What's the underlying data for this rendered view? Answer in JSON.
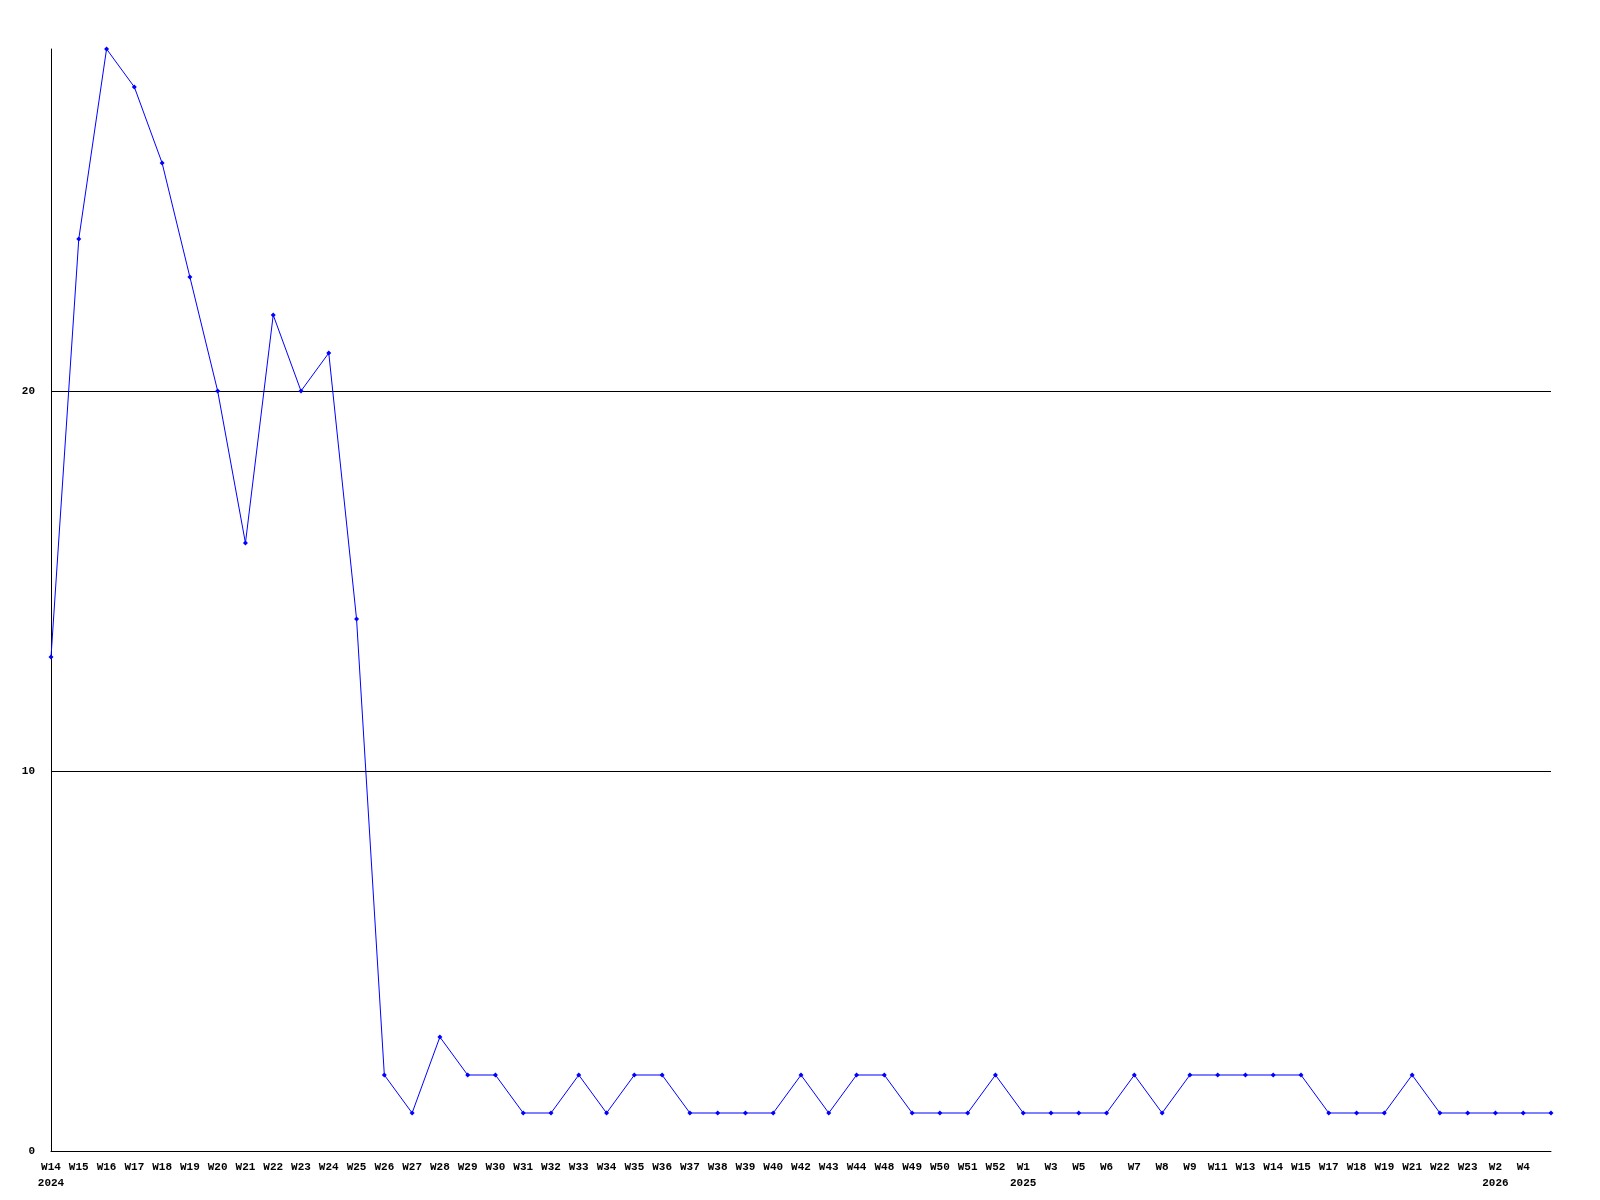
{
  "chart_data": {
    "type": "line",
    "categories": [
      "W14\n2024",
      "W15",
      "W16",
      "W17",
      "W18",
      "W19",
      "W20",
      "W21",
      "W22",
      "W23",
      "W24",
      "W25",
      "W26",
      "W27",
      "W28",
      "W29",
      "W30",
      "W31",
      "W32",
      "W33",
      "W34",
      "W35",
      "W36",
      "W37",
      "W38",
      "W39",
      "W40",
      "W42",
      "W43",
      "W44",
      "W48",
      "W49",
      "W50",
      "W51",
      "W52",
      "W1\n2025",
      "W3",
      "W5",
      "W6",
      "W7",
      "W8",
      "W9",
      "W11",
      "W13",
      "W14",
      "W15",
      "W17",
      "W18",
      "W19",
      "W21",
      "W22",
      "W23",
      "W2\n2026",
      "W4",
      null
    ],
    "series": [
      {
        "color": "#0000ff",
        "values": [
          13,
          24,
          29,
          28,
          26,
          23,
          20,
          16,
          22,
          20,
          21,
          14,
          2,
          1,
          3,
          2,
          2,
          1,
          1,
          2,
          1,
          2,
          2,
          1,
          1,
          1,
          1,
          2,
          1,
          2,
          2,
          1,
          1,
          1,
          2,
          1,
          1,
          1,
          1,
          2,
          1,
          2,
          2,
          2,
          2,
          2,
          1,
          1,
          1,
          2,
          1,
          1,
          1,
          1,
          1
        ]
      }
    ],
    "ylim": [
      0,
      29
    ],
    "yticks": [
      0,
      10,
      20
    ],
    "grid": "y",
    "marker": "diamond",
    "line_style": "solid"
  }
}
